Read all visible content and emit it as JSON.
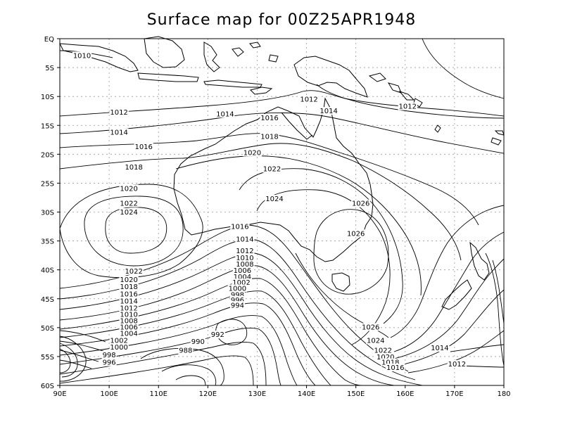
{
  "title": "Surface map for    00Z25APR1948",
  "axes": {
    "lon_labels": [
      "90E",
      "100E",
      "110E",
      "120E",
      "130E",
      "140E",
      "150E",
      "160E",
      "170E",
      "180"
    ],
    "lat_labels": [
      "EQ",
      "5S",
      "10S",
      "15S",
      "20S",
      "25S",
      "30S",
      "35S",
      "40S",
      "45S",
      "50S",
      "55S",
      "60S"
    ]
  },
  "isobar_labels": [
    {
      "text": "1010",
      "lon": 94.5,
      "lat": -3.2
    },
    {
      "text": "1012",
      "lon": 102,
      "lat": -13
    },
    {
      "text": "1014",
      "lon": 102,
      "lat": -16.5
    },
    {
      "text": "1016",
      "lon": 107,
      "lat": -19
    },
    {
      "text": "1018",
      "lon": 105,
      "lat": -22.5
    },
    {
      "text": "1020",
      "lon": 104,
      "lat": -26.2
    },
    {
      "text": "1022",
      "lon": 104,
      "lat": -28.8
    },
    {
      "text": "1024",
      "lon": 104,
      "lat": -30.3
    },
    {
      "text": "1014",
      "lon": 123.5,
      "lat": -13.3
    },
    {
      "text": "1012",
      "lon": 140.5,
      "lat": -10.8
    },
    {
      "text": "1014",
      "lon": 144.5,
      "lat": -12.8
    },
    {
      "text": "1012",
      "lon": 160.5,
      "lat": -12
    },
    {
      "text": "1016",
      "lon": 132.5,
      "lat": -14
    },
    {
      "text": "1018",
      "lon": 132.5,
      "lat": -17.2
    },
    {
      "text": "1020",
      "lon": 129,
      "lat": -20
    },
    {
      "text": "1022",
      "lon": 133,
      "lat": -22.8
    },
    {
      "text": "1024",
      "lon": 133.5,
      "lat": -28
    },
    {
      "text": "1026",
      "lon": 151,
      "lat": -28.8
    },
    {
      "text": "1026",
      "lon": 150,
      "lat": -34
    },
    {
      "text": "1016",
      "lon": 126.5,
      "lat": -32.8
    },
    {
      "text": "1014",
      "lon": 127.5,
      "lat": -35
    },
    {
      "text": "1012",
      "lon": 127.5,
      "lat": -37
    },
    {
      "text": "1010",
      "lon": 127.5,
      "lat": -38.2
    },
    {
      "text": "1008",
      "lon": 127.5,
      "lat": -39.3
    },
    {
      "text": "1006",
      "lon": 127,
      "lat": -40.4
    },
    {
      "text": "1004",
      "lon": 127,
      "lat": -41.5
    },
    {
      "text": "1002",
      "lon": 126.8,
      "lat": -42.5
    },
    {
      "text": "1000",
      "lon": 126,
      "lat": -43.5
    },
    {
      "text": "998",
      "lon": 126,
      "lat": -44.6
    },
    {
      "text": "996",
      "lon": 126,
      "lat": -45.5
    },
    {
      "text": "994",
      "lon": 126,
      "lat": -46.4
    },
    {
      "text": "1022",
      "lon": 105,
      "lat": -40.5
    },
    {
      "text": "1020",
      "lon": 104,
      "lat": -42
    },
    {
      "text": "1018",
      "lon": 104,
      "lat": -43.2
    },
    {
      "text": "1016",
      "lon": 104,
      "lat": -44.5
    },
    {
      "text": "1014",
      "lon": 104,
      "lat": -45.7
    },
    {
      "text": "1012",
      "lon": 104,
      "lat": -46.9
    },
    {
      "text": "1010",
      "lon": 104,
      "lat": -48
    },
    {
      "text": "1008",
      "lon": 104,
      "lat": -49.1
    },
    {
      "text": "1006",
      "lon": 104,
      "lat": -50.2
    },
    {
      "text": "1004",
      "lon": 104,
      "lat": -51.3
    },
    {
      "text": "1002",
      "lon": 102,
      "lat": -52.5
    },
    {
      "text": "1000",
      "lon": 102,
      "lat": -53.7
    },
    {
      "text": "998",
      "lon": 100,
      "lat": -55
    },
    {
      "text": "996",
      "lon": 100,
      "lat": -56.3
    },
    {
      "text": "992",
      "lon": 122,
      "lat": -51.5
    },
    {
      "text": "990",
      "lon": 118,
      "lat": -52.7
    },
    {
      "text": "988",
      "lon": 115.5,
      "lat": -54.2
    },
    {
      "text": "1026",
      "lon": 153,
      "lat": -50.2
    },
    {
      "text": "1024",
      "lon": 154,
      "lat": -52.5
    },
    {
      "text": "1022",
      "lon": 155.5,
      "lat": -54.2
    },
    {
      "text": "1020",
      "lon": 156,
      "lat": -55.4
    },
    {
      "text": "1018",
      "lon": 157,
      "lat": -56.3
    },
    {
      "text": "1016",
      "lon": 158,
      "lat": -57.2
    },
    {
      "text": "1014",
      "lon": 167,
      "lat": -53.8
    },
    {
      "text": "1012",
      "lon": 170.5,
      "lat": -56.6
    }
  ]
}
